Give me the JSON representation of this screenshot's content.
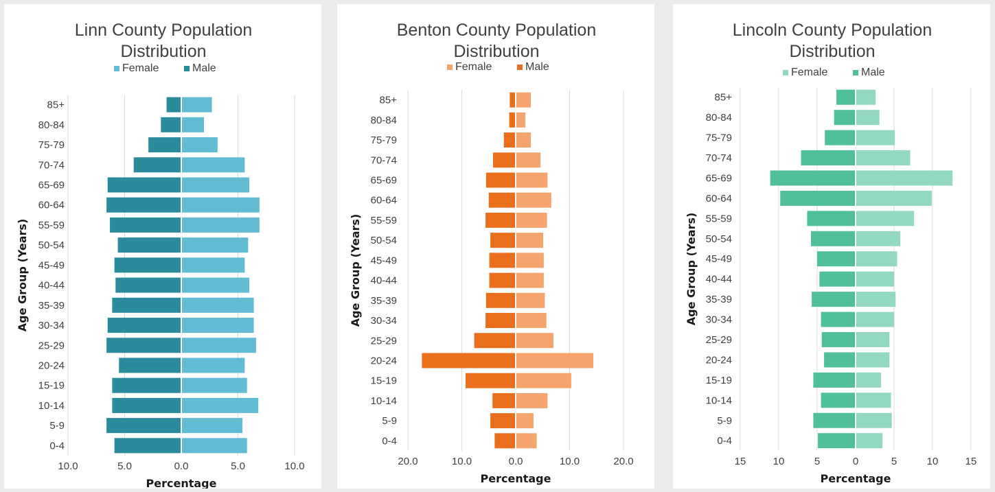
{
  "chart_data": [
    {
      "type": "bar",
      "orientation": "horizontal",
      "title": "Linn County Population Distribution",
      "title_lines": [
        "Linn County Population",
        "Distribution"
      ],
      "xlabel": "Percentage",
      "ylabel": "Age Group (Years)",
      "categories": [
        "85+",
        "80-84",
        "75-79",
        "70-74",
        "65-69",
        "60-64",
        "55-59",
        "50-54",
        "45-49",
        "40-44",
        "35-39",
        "30-34",
        "25-29",
        "20-24",
        "15-19",
        "10-14",
        "5-9",
        "0-4"
      ],
      "xlim": [
        -12,
        12
      ],
      "xticks": [
        -10,
        -5,
        0,
        5,
        10
      ],
      "xtick_labels": [
        "10.0",
        "5.0",
        "0.0",
        "5.0",
        "10.0"
      ],
      "grid": true,
      "legend_position": "top",
      "series": [
        {
          "name": "Female",
          "color": "#62bcd4",
          "values": [
            2.7,
            2.0,
            3.2,
            5.6,
            6.0,
            6.9,
            6.9,
            5.9,
            5.6,
            6.0,
            6.4,
            6.4,
            6.6,
            5.6,
            5.8,
            6.8,
            5.4,
            5.8
          ]
        },
        {
          "name": "Male",
          "color": "#2a8b9d",
          "values": [
            -1.3,
            -1.8,
            -2.9,
            -4.2,
            -6.5,
            -6.6,
            -6.3,
            -5.6,
            -5.9,
            -5.8,
            -6.1,
            -6.5,
            -6.6,
            -5.5,
            -6.1,
            -6.1,
            -6.6,
            -5.9
          ]
        }
      ]
    },
    {
      "type": "bar",
      "orientation": "horizontal",
      "title": "Benton County Population Distribution",
      "title_lines": [
        "Benton County Population",
        "Distribution"
      ],
      "xlabel": "Percentage",
      "ylabel": "Age Group (Years)",
      "categories": [
        "85+",
        "80-84",
        "75-79",
        "70-74",
        "65-69",
        "60-64",
        "55-59",
        "50-54",
        "45-49",
        "40-44",
        "35-39",
        "30-34",
        "25-29",
        "20-24",
        "15-19",
        "10-14",
        "5-9",
        "0-4"
      ],
      "xlim": [
        -22,
        22
      ],
      "xticks": [
        -20,
        -10,
        0,
        10,
        20
      ],
      "xtick_labels": [
        "20.0",
        "10.0",
        "0.0",
        "10.0",
        "20.0"
      ],
      "grid": true,
      "legend_position": "top",
      "series": [
        {
          "name": "Female",
          "color": "#f4a46c",
          "values": [
            2.8,
            1.8,
            2.8,
            4.6,
            5.9,
            6.6,
            5.8,
            5.1,
            5.2,
            5.2,
            5.4,
            5.7,
            7.0,
            14.4,
            10.3,
            5.9,
            3.3,
            3.9
          ]
        },
        {
          "name": "Male",
          "color": "#ea6f1c",
          "values": [
            -1.1,
            -1.2,
            -2.2,
            -4.2,
            -5.5,
            -5.0,
            -5.6,
            -4.7,
            -4.9,
            -4.9,
            -5.5,
            -5.6,
            -7.7,
            -17.4,
            -9.3,
            -4.3,
            -4.7,
            -3.9
          ]
        }
      ]
    },
    {
      "type": "bar",
      "orientation": "horizontal",
      "title": "Lincoln County Population Distribution",
      "title_lines": [
        "Lincoln County Population",
        "Distribution"
      ],
      "xlabel": "Percentage",
      "ylabel": "Age Group (Years)",
      "categories": [
        "85+",
        "80-84",
        "75-79",
        "70-74",
        "65-69",
        "60-64",
        "55-59",
        "50-54",
        "45-49",
        "40-44",
        "35-39",
        "30-34",
        "25-29",
        "20-24",
        "15-19",
        "10-14",
        "5-9",
        "0-4"
      ],
      "xlim": [
        -16,
        16
      ],
      "xticks": [
        -15,
        -10,
        -5,
        0,
        5,
        10,
        15
      ],
      "xtick_labels": [
        "15",
        "10",
        "5",
        "0",
        "5",
        "10",
        "15"
      ],
      "grid": true,
      "legend_position": "top",
      "series": [
        {
          "name": "Female",
          "color": "#93d8c2",
          "values": [
            2.6,
            3.1,
            5.1,
            7.1,
            12.6,
            9.9,
            7.6,
            5.8,
            5.4,
            5.0,
            5.2,
            5.0,
            4.4,
            4.4,
            3.3,
            4.6,
            4.7,
            3.5
          ]
        },
        {
          "name": "Male",
          "color": "#4fbf9c",
          "values": [
            -2.5,
            -2.8,
            -4.0,
            -7.1,
            -11.1,
            -9.8,
            -6.3,
            -5.8,
            -5.0,
            -4.7,
            -5.7,
            -4.5,
            -4.4,
            -4.1,
            -5.5,
            -4.5,
            -5.5,
            -4.9
          ]
        }
      ]
    }
  ]
}
